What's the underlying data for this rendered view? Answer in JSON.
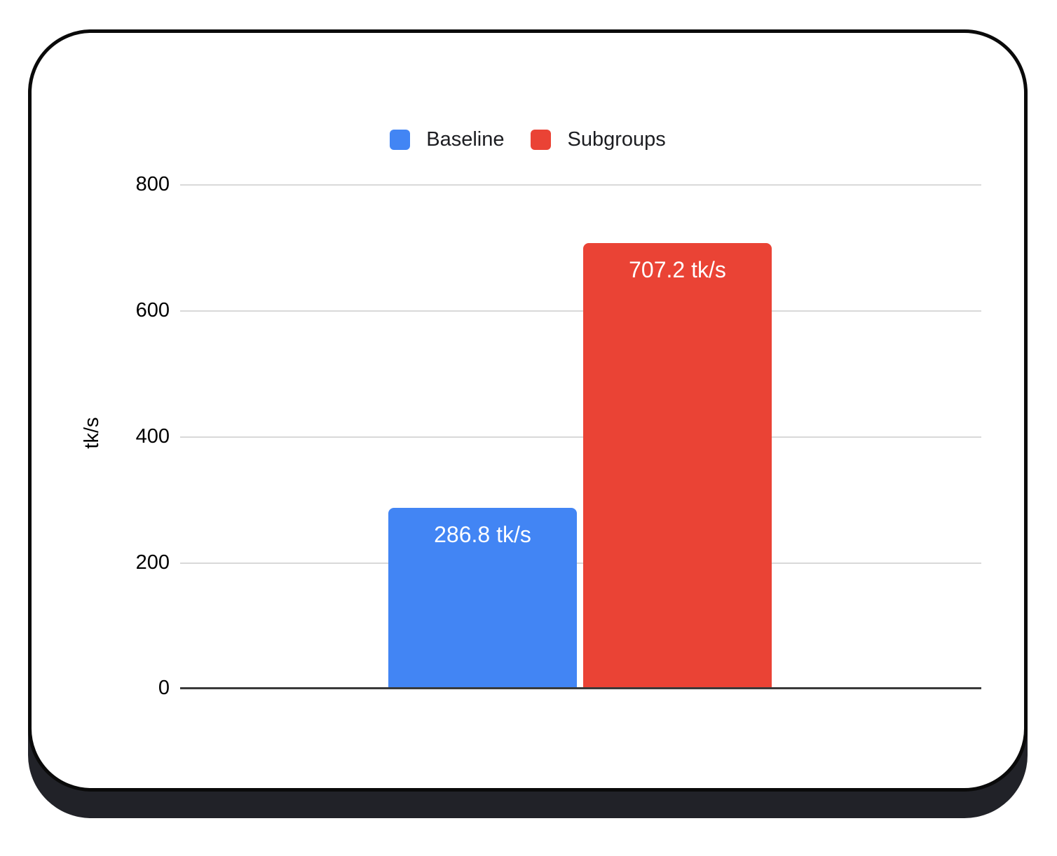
{
  "chart_data": {
    "type": "bar",
    "title": "",
    "categories": [
      ""
    ],
    "series": [
      {
        "name": "Baseline",
        "values": [
          286.8
        ],
        "data_label": "286.8 tk/s",
        "color": "#4285f4"
      },
      {
        "name": "Subgroups",
        "values": [
          707.2
        ],
        "data_label": "707.2 tk/s",
        "color": "#ea4335"
      }
    ],
    "xlabel": "",
    "ylabel": "tk/s",
    "unit": "tk/s",
    "ylim": [
      0,
      800
    ],
    "ytick_labels": [
      "800",
      "600",
      "400",
      "200",
      "0"
    ],
    "grid": true,
    "legend_position": "top-center",
    "colors": {
      "grid": "#d9d9d9",
      "axis": "#3a3a3a",
      "card_border": "#0a0a0a",
      "card_shadow": "#212228",
      "bar_label_text": "#ffffff"
    }
  }
}
